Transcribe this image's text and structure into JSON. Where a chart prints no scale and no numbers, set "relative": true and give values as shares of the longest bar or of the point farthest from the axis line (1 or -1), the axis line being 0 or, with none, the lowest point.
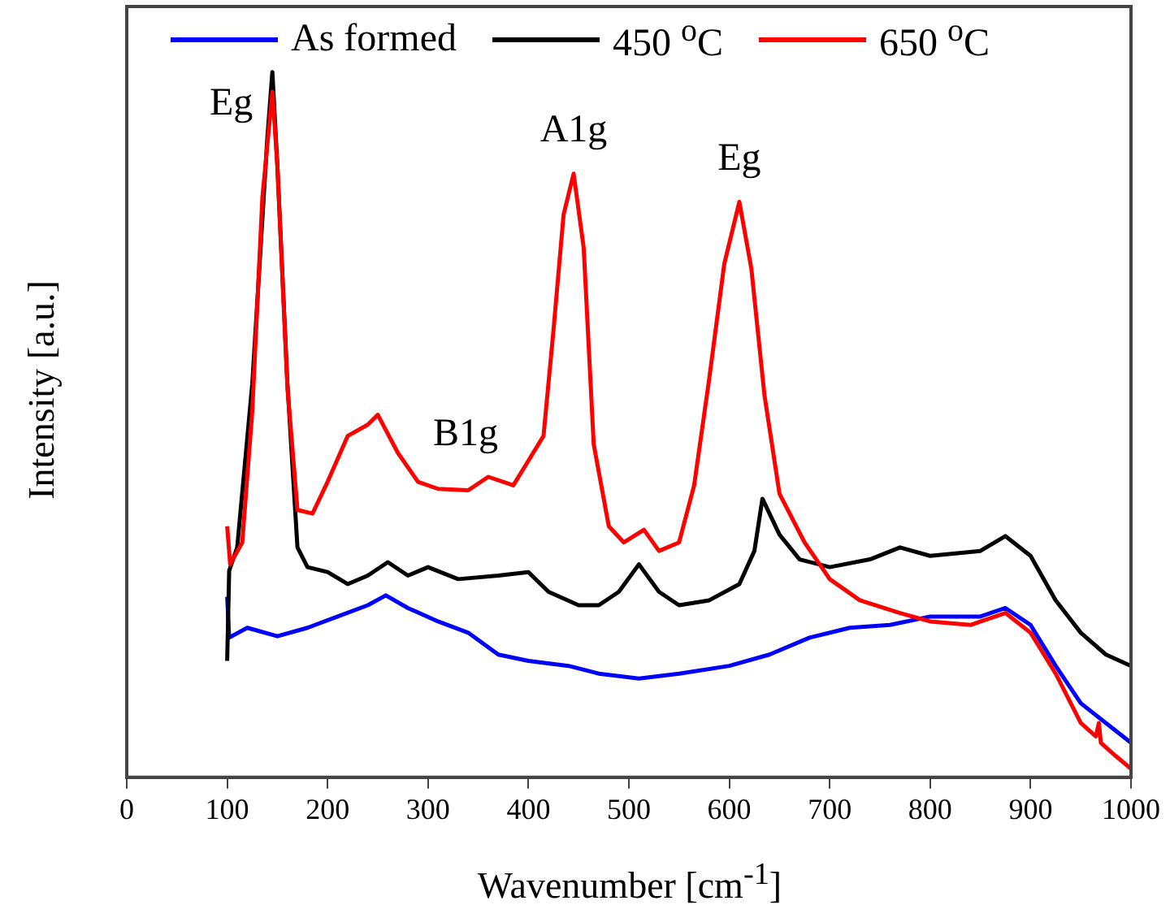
{
  "chart_data": {
    "type": "line",
    "relative": true,
    "xlabel": "Wavenumber [cm$^{-1}$]",
    "ylabel": "Intensity [a.u.]",
    "xlim": [
      0,
      1000
    ],
    "xticks": [
      0,
      100,
      200,
      300,
      400,
      500,
      600,
      700,
      800,
      900,
      1000
    ],
    "legend": "top",
    "grid": false,
    "marker": "none",
    "line_style": "solid",
    "annotations": [
      {
        "text": "Eg",
        "x": 145,
        "y": 1
      },
      {
        "text": "B1g",
        "x": 360,
        "y": 0.426
      },
      {
        "text": "A1g",
        "x": 445,
        "y": 0.856
      },
      {
        "text": "Eg",
        "x": 610,
        "y": 0.816
      }
    ],
    "series": [
      {
        "name": "As formed",
        "color": "#0000ff",
        "x": [
          100,
          102,
          120,
          150,
          180,
          210,
          240,
          258,
          280,
          310,
          340,
          370,
          400,
          440,
          470,
          510,
          550,
          600,
          640,
          680,
          720,
          760,
          800,
          850,
          875,
          900,
          925,
          950,
          975,
          1000
        ],
        "values": [
          0.256,
          0.198,
          0.212,
          0.2,
          0.212,
          0.228,
          0.244,
          0.258,
          0.24,
          0.221,
          0.205,
          0.174,
          0.165,
          0.158,
          0.147,
          0.14,
          0.147,
          0.158,
          0.174,
          0.198,
          0.212,
          0.216,
          0.228,
          0.228,
          0.24,
          0.216,
          0.158,
          0.105,
          0.077,
          0.049
        ]
      },
      {
        "name": "450 $^{o}$C",
        "color": "#000000",
        "x": [
          100,
          102,
          110,
          125,
          140,
          145,
          150,
          160,
          170,
          180,
          200,
          220,
          240,
          260,
          280,
          300,
          330,
          370,
          400,
          420,
          450,
          470,
          490,
          510,
          530,
          550,
          580,
          610,
          625,
          633,
          650,
          670,
          700,
          740,
          770,
          800,
          850,
          875,
          900,
          925,
          950,
          975,
          1000
        ],
        "values": [
          0.165,
          0.293,
          0.326,
          0.558,
          0.907,
          1,
          0.867,
          0.558,
          0.326,
          0.298,
          0.291,
          0.274,
          0.286,
          0.305,
          0.286,
          0.298,
          0.281,
          0.286,
          0.291,
          0.263,
          0.244,
          0.244,
          0.263,
          0.302,
          0.263,
          0.244,
          0.251,
          0.274,
          0.321,
          0.395,
          0.344,
          0.309,
          0.298,
          0.309,
          0.326,
          0.314,
          0.321,
          0.342,
          0.314,
          0.251,
          0.205,
          0.174,
          0.158
        ]
      },
      {
        "name": "650 $^{o}$C",
        "color": "#ff0000",
        "x": [
          100,
          103,
          115,
          125,
          135,
          145,
          150,
          160,
          170,
          185,
          200,
          220,
          240,
          250,
          270,
          290,
          310,
          340,
          360,
          385,
          400,
          415,
          425,
          435,
          445,
          455,
          465,
          480,
          495,
          515,
          530,
          550,
          565,
          580,
          595,
          610,
          622,
          635,
          650,
          675,
          700,
          730,
          770,
          800,
          840,
          875,
          900,
          925,
          950,
          965,
          968,
          970,
          985,
          1000
        ],
        "values": [
          0.356,
          0.302,
          0.333,
          0.519,
          0.821,
          0.972,
          0.867,
          0.553,
          0.379,
          0.374,
          0.419,
          0.484,
          0.5,
          0.514,
          0.46,
          0.419,
          0.409,
          0.407,
          0.426,
          0.414,
          0.449,
          0.484,
          0.635,
          0.798,
          0.856,
          0.751,
          0.472,
          0.356,
          0.333,
          0.351,
          0.321,
          0.333,
          0.414,
          0.565,
          0.728,
          0.816,
          0.721,
          0.542,
          0.402,
          0.333,
          0.281,
          0.251,
          0.233,
          0.221,
          0.216,
          0.233,
          0.205,
          0.147,
          0.077,
          0.058,
          0.077,
          0.049,
          0.03,
          0.012
        ]
      }
    ]
  }
}
